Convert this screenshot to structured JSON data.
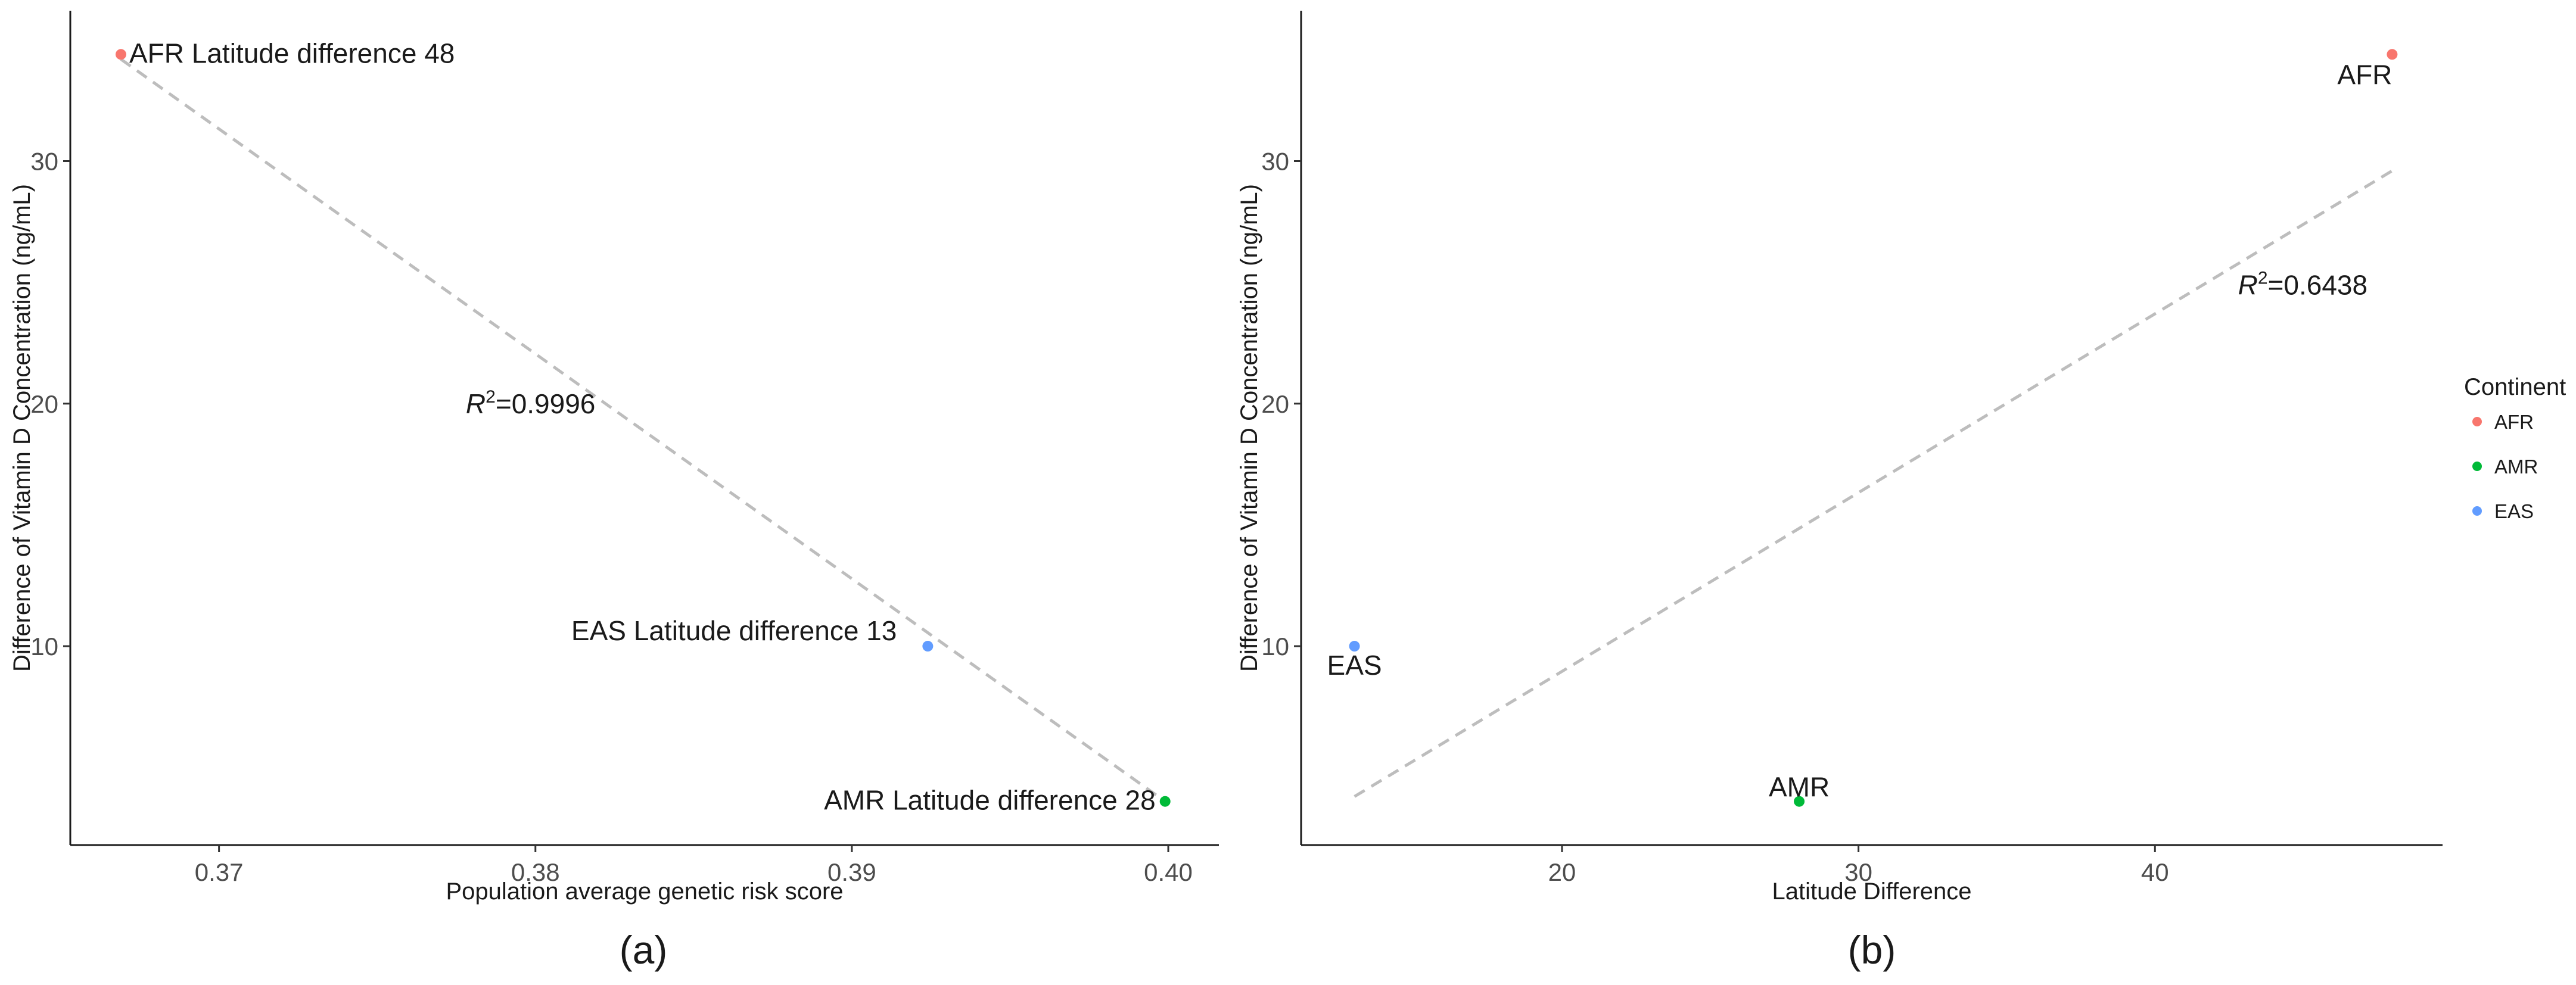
{
  "chart_data": [
    {
      "type": "scatter",
      "panel_label": "(a)",
      "xlabel": "Population average genetic risk score",
      "ylabel": "Difference of Vitamin D Concentration (ng/mL)",
      "xlim": [
        0.3653,
        0.4016
      ],
      "ylim": [
        1.8,
        36.2
      ],
      "xticks": [
        0.37,
        0.38,
        0.39,
        0.4
      ],
      "xtick_labels": [
        "0.37",
        "0.38",
        "0.39",
        "0.40"
      ],
      "yticks": [
        10,
        20,
        30
      ],
      "ytick_labels": [
        "10",
        "20",
        "30"
      ],
      "grid": false,
      "points": [
        {
          "x": 0.3669,
          "y": 34.4,
          "group": "AFR",
          "label": "AFR Latitude difference 48"
        },
        {
          "x": 0.3924,
          "y": 10.0,
          "group": "EAS",
          "label": "EAS Latitude difference 13"
        },
        {
          "x": 0.3999,
          "y": 3.6,
          "group": "AMR",
          "label": "AMR Latitude difference 28"
        }
      ],
      "fit_line": {
        "x": [
          0.3669,
          0.3999
        ],
        "y": [
          34.2,
          3.6
        ],
        "style": "dashed"
      },
      "annotation": {
        "prefix": "R",
        "superscript": "2",
        "value": "=0.9996",
        "x": 0.3778,
        "y": 19.6
      }
    },
    {
      "type": "scatter",
      "panel_label": "(b)",
      "xlabel": "Latitude Difference",
      "ylabel": "Difference of Vitamin D Concentration (ng/mL)",
      "xlim": [
        11.2,
        49.7
      ],
      "ylim": [
        1.8,
        36.2
      ],
      "xticks": [
        20,
        30,
        40
      ],
      "xtick_labels": [
        "20",
        "30",
        "40"
      ],
      "yticks": [
        10,
        20,
        30
      ],
      "ytick_labels": [
        "10",
        "20",
        "30"
      ],
      "grid": false,
      "points": [
        {
          "x": 48,
          "y": 34.4,
          "group": "AFR",
          "label": "AFR"
        },
        {
          "x": 13,
          "y": 10.0,
          "group": "EAS",
          "label": "EAS"
        },
        {
          "x": 28,
          "y": 3.6,
          "group": "AMR",
          "label": "AMR"
        }
      ],
      "fit_line": {
        "x": [
          13,
          48
        ],
        "y": [
          3.8,
          29.6
        ],
        "style": "dashed"
      },
      "annotation": {
        "prefix": "R",
        "superscript": "2",
        "value": "=0.6438",
        "x": 42.8,
        "y": 24.5
      }
    }
  ],
  "legend": {
    "title": "Continent",
    "position": "right",
    "items": [
      {
        "label": "AFR",
        "color": "#F8766D"
      },
      {
        "label": "AMR",
        "color": "#00BA38"
      },
      {
        "label": "EAS",
        "color": "#619CFF"
      }
    ]
  },
  "colors": {
    "AFR": "#F8766D",
    "AMR": "#00BA38",
    "EAS": "#619CFF",
    "fit_line": "#bdbdbd",
    "axis": "#1a1a1a"
  }
}
